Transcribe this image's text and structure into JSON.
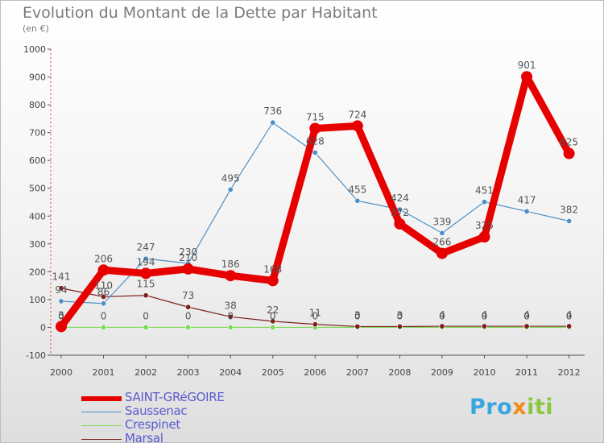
{
  "header": {
    "title": "Evolution du Montant de la Dette par Habitant",
    "subtitle": "(en €)"
  },
  "brand": {
    "text_main": "Pro",
    "text_x": "x",
    "text_end": "iti"
  },
  "chart_data": {
    "type": "line",
    "title": "Evolution du Montant de la Dette par Habitant",
    "ylabel": "(en €)",
    "xlabel": "",
    "ylim": [
      -100,
      1000
    ],
    "yticks": [
      -100,
      0,
      100,
      200,
      300,
      400,
      500,
      600,
      700,
      800,
      900,
      1000
    ],
    "categories": [
      "2000",
      "2001",
      "2002",
      "2003",
      "2004",
      "2005",
      "2006",
      "2007",
      "2008",
      "2009",
      "2010",
      "2011",
      "2012"
    ],
    "grid": false,
    "legend_position": "bottom-left",
    "series": [
      {
        "name": "SAINT-GRéGOIRE",
        "color": "#e60000",
        "values": [
          3,
          206,
          194,
          210,
          186,
          168,
          715,
          724,
          372,
          266,
          325,
          901,
          625
        ]
      },
      {
        "name": "Saussenac",
        "color": "#4d90c8",
        "values": [
          94,
          86,
          247,
          230,
          495,
          736,
          628,
          455,
          424,
          339,
          451,
          417,
          382
        ]
      },
      {
        "name": "Crespinet",
        "color": "#7ed957",
        "values": [
          0,
          0,
          0,
          0,
          0,
          0,
          0,
          0,
          0,
          0,
          0,
          0,
          0
        ]
      },
      {
        "name": "Marsal",
        "color": "#7b1e1e",
        "values": [
          141,
          110,
          115,
          73,
          38,
          22,
          11,
          3,
          3,
          4,
          4,
          4,
          4
        ]
      }
    ]
  }
}
